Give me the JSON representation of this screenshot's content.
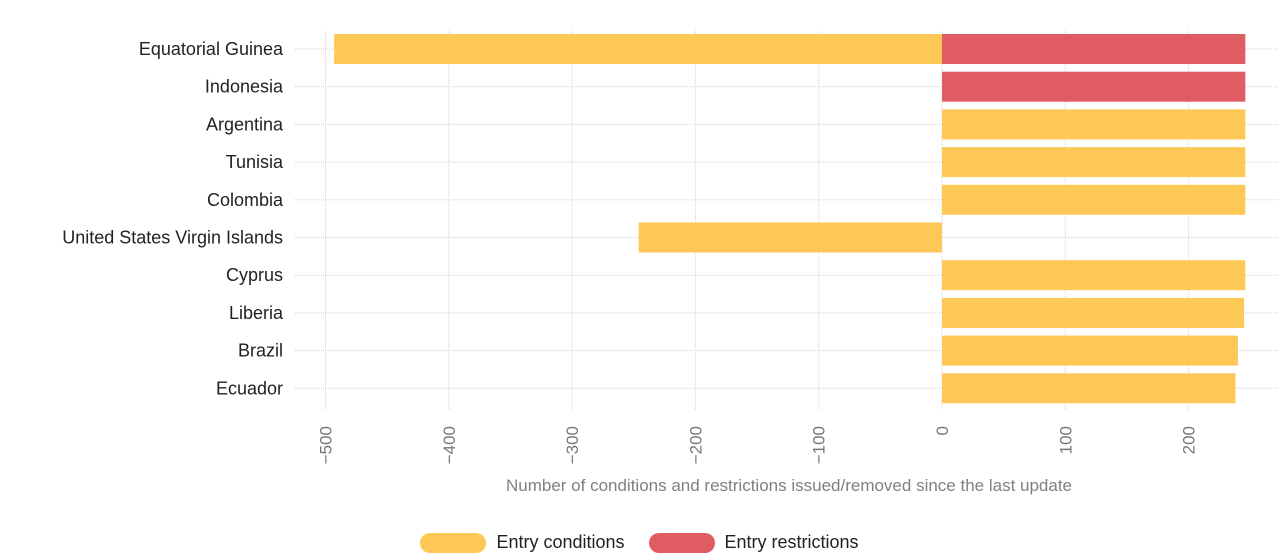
{
  "chart_data": {
    "type": "bar",
    "orientation": "horizontal",
    "title": "",
    "xlabel": "Number of conditions and restrictions issued/removed since the last update",
    "ylabel": "",
    "xlim": [
      -530,
      260
    ],
    "xticks": [
      -500,
      -400,
      -300,
      -200,
      -100,
      0,
      100,
      200
    ],
    "categories": [
      "Equatorial Guinea",
      "Indonesia",
      "Argentina",
      "Tunisia",
      "Colombia",
      "United States Virgin Islands",
      "Cyprus",
      "Liberia",
      "Brazil",
      "Ecuador"
    ],
    "series": [
      {
        "name": "Entry conditions",
        "color": "#fec857",
        "values": [
          -493,
          0,
          246,
          246,
          246,
          -246,
          246,
          245,
          240,
          238
        ]
      },
      {
        "name": "Entry restrictions",
        "color": "#df5c62",
        "values": [
          246,
          246,
          0,
          0,
          0,
          0,
          0,
          0,
          0,
          0
        ]
      }
    ],
    "grid": true,
    "legend_position": "bottom"
  }
}
